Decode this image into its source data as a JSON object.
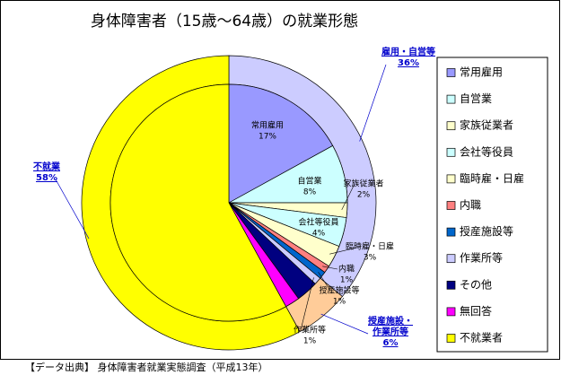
{
  "chart_data": {
    "type": "nested-pie",
    "title": "身体障害者（15歳～64歳）の就業形態",
    "categories": [
      "常用雇用",
      "自営業",
      "家族従業者",
      "会社等役員",
      "臨時雇・日雇",
      "内職",
      "授産施設等",
      "作業所等",
      "その他",
      "無回答",
      "不就業者"
    ],
    "values": [
      17,
      8,
      2,
      4,
      3,
      1,
      1,
      1,
      3,
      2,
      58
    ],
    "value_labels": [
      "17%",
      "8%",
      "2%",
      "4%",
      "3%",
      "1%",
      "1%",
      "1%",
      null,
      null,
      null
    ],
    "colors": [
      "#9999ff",
      "#ccffff",
      "#ffffcc",
      "#ccffff",
      "#ffffcc",
      "#ff8080",
      "#0066cc",
      "#ccccff",
      "#000080",
      "#ff00ff",
      "#ffff00"
    ],
    "outer": {
      "categories": [
        "雇用・自営等",
        "授産施設・作業所等",
        "不就業"
      ],
      "values": [
        36,
        6,
        58
      ],
      "value_labels": [
        "36%",
        "6%",
        "58%"
      ],
      "colors": [
        "#ccccff",
        "#ffcc99",
        "#ffff00"
      ]
    },
    "legend": "right",
    "source": "【データ出典】 身体障害者就業実態調査（平成13年）"
  }
}
